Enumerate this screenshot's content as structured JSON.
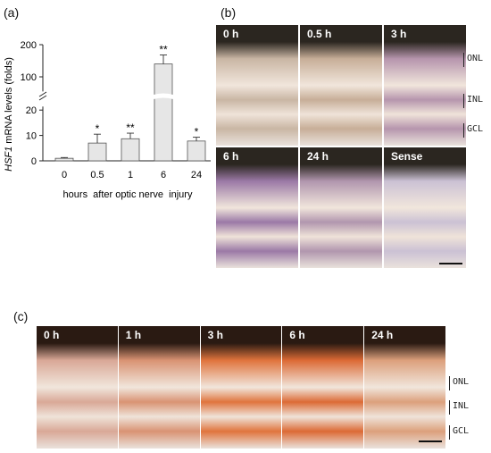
{
  "panels": {
    "a": {
      "label": "(a)"
    },
    "b": {
      "label": "(b)"
    },
    "c": {
      "label": "(c)"
    }
  },
  "chart_data": {
    "type": "bar",
    "ylabel_italic": "HSF1",
    "ylabel_rest": " mRNA levels (folds)",
    "xlabel": "hours  after optic nerve  injury",
    "categories": [
      "0",
      "0.5",
      "1",
      "6",
      "24"
    ],
    "values": [
      1,
      7,
      8.7,
      140,
      7.8
    ],
    "errors": [
      0.3,
      3.5,
      2.2,
      28,
      1.5
    ],
    "significance": [
      "",
      "*",
      "**",
      "**",
      "*"
    ],
    "y_axis_break": true,
    "yticks_lower": [
      "0",
      "10",
      "20"
    ],
    "yticks_upper": [
      "100",
      "200"
    ],
    "bar_color": "#e6e6e6"
  },
  "panel_b": {
    "tiles": [
      {
        "label": "0 h",
        "tint": "#c9b6a4"
      },
      {
        "label": "0.5 h",
        "tint": "#c7ae98"
      },
      {
        "label": "3 h",
        "tint": "#b695ad"
      },
      {
        "label": "6 h",
        "tint": "#9b79a6"
      },
      {
        "label": "24 h",
        "tint": "#b196ae"
      },
      {
        "label": "Sense",
        "tint": "#cbc1d4"
      }
    ],
    "layers": [
      "ONL",
      "INL",
      "GCL"
    ]
  },
  "panel_c": {
    "tiles": [
      {
        "label": "0 h",
        "tint": "#d9a897"
      },
      {
        "label": "1 h",
        "tint": "#d99373"
      },
      {
        "label": "3 h",
        "tint": "#e0743d"
      },
      {
        "label": "6 h",
        "tint": "#dc6a35"
      },
      {
        "label": "24 h",
        "tint": "#dca07c"
      }
    ],
    "layers": [
      "ONL",
      "INL",
      "GCL"
    ]
  }
}
